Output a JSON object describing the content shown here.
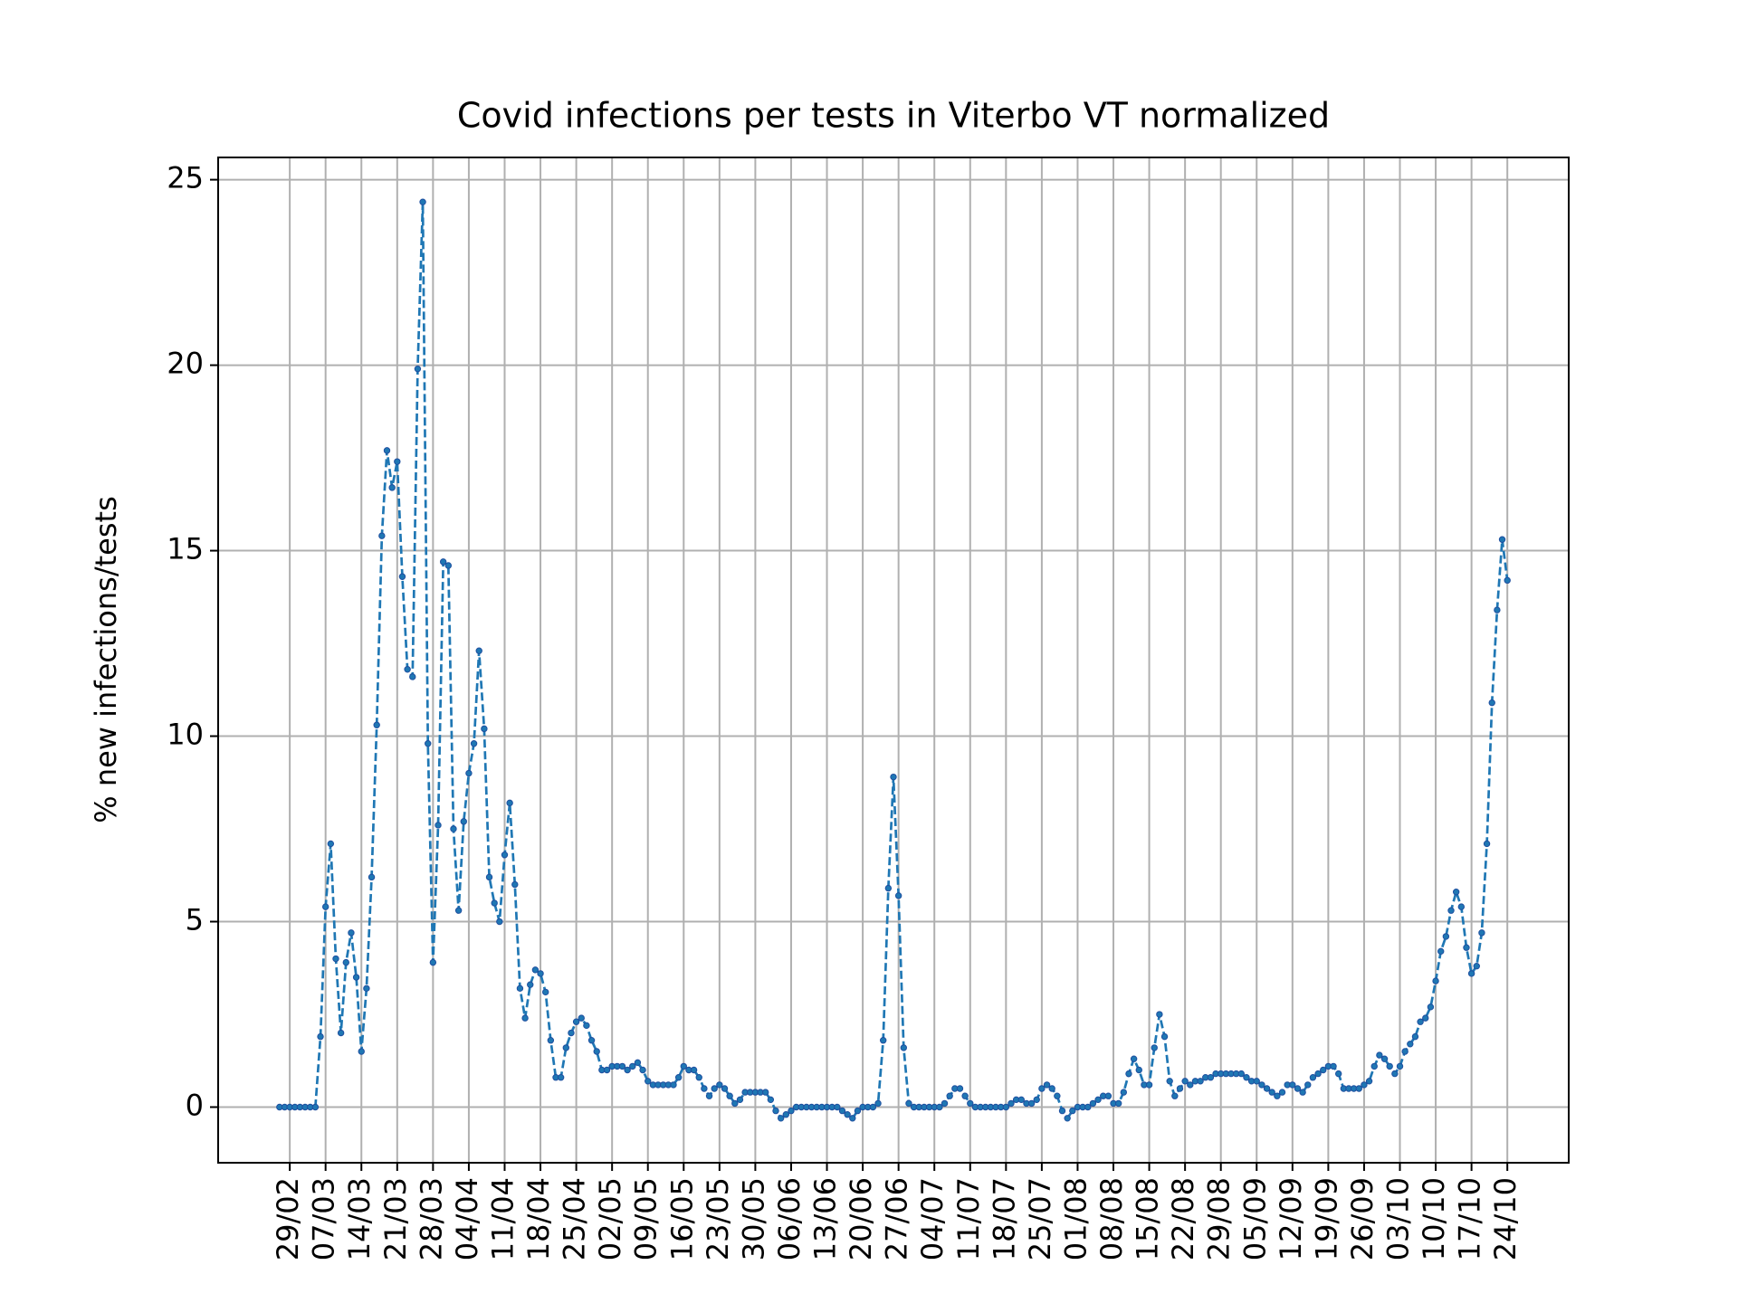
{
  "chart_data": {
    "type": "line",
    "title": "Covid infections per tests in Viterbo VT normalized",
    "y_label": "% new infections/tests",
    "categories": [
      null,
      null,
      "29/02",
      null,
      null,
      null,
      null,
      null,
      null,
      "07/03",
      null,
      null,
      null,
      null,
      null,
      null,
      "14/03",
      null,
      null,
      null,
      null,
      null,
      null,
      "21/03",
      null,
      null,
      null,
      null,
      null,
      null,
      "28/03",
      null,
      null,
      null,
      null,
      null,
      null,
      "04/04",
      null,
      null,
      null,
      null,
      null,
      null,
      "11/04",
      null,
      null,
      null,
      null,
      null,
      null,
      "18/04",
      null,
      null,
      null,
      null,
      null,
      null,
      "25/04",
      null,
      null,
      null,
      null,
      null,
      null,
      "02/05",
      null,
      null,
      null,
      null,
      null,
      null,
      "09/05",
      null,
      null,
      null,
      null,
      null,
      null,
      "16/05",
      null,
      null,
      null,
      null,
      null,
      null,
      "23/05",
      null,
      null,
      null,
      null,
      null,
      null,
      "30/05",
      null,
      null,
      null,
      null,
      null,
      null,
      "06/06",
      null,
      null,
      null,
      null,
      null,
      null,
      "13/06",
      null,
      null,
      null,
      null,
      null,
      null,
      "20/06",
      null,
      null,
      null,
      null,
      null,
      null,
      "27/06",
      null,
      null,
      null,
      null,
      null,
      null,
      "04/07",
      null,
      null,
      null,
      null,
      null,
      null,
      "11/07",
      null,
      null,
      null,
      null,
      null,
      null,
      "18/07",
      null,
      null,
      null,
      null,
      null,
      null,
      "25/07",
      null,
      null,
      null,
      null,
      null,
      null,
      "01/08",
      null,
      null,
      null,
      null,
      null,
      null,
      "08/08",
      null,
      null,
      null,
      null,
      null,
      null,
      "15/08",
      null,
      null,
      null,
      null,
      null,
      null,
      "22/08",
      null,
      null,
      null,
      null,
      null,
      null,
      "29/08",
      null,
      null,
      null,
      null,
      null,
      null,
      "05/09",
      null,
      null,
      null,
      null,
      null,
      null,
      "12/09",
      null,
      null,
      null,
      null,
      null,
      null,
      "19/09",
      null,
      null,
      null,
      null,
      null,
      null,
      "26/09",
      null,
      null,
      null,
      null,
      null,
      null,
      "03/10",
      null,
      null,
      null,
      null,
      null,
      null,
      "10/10",
      null,
      null,
      null,
      null,
      null,
      null,
      "17/10",
      null,
      null,
      null,
      null,
      null,
      null,
      "24/10"
    ],
    "series": [
      {
        "color": "#1f77b4",
        "values": [
          0,
          0,
          0,
          0,
          0,
          0,
          0,
          0,
          1.9,
          5.4,
          7.1,
          4.0,
          2.0,
          3.9,
          4.7,
          3.5,
          1.5,
          3.2,
          6.2,
          10.3,
          15.4,
          17.7,
          16.7,
          17.4,
          14.3,
          11.8,
          11.6,
          19.9,
          24.4,
          9.8,
          3.9,
          7.6,
          14.7,
          14.6,
          7.5,
          5.3,
          7.7,
          9.0,
          9.8,
          12.3,
          10.2,
          6.2,
          5.5,
          5.0,
          6.8,
          8.2,
          6.0,
          3.2,
          2.4,
          3.3,
          3.7,
          3.6,
          3.1,
          1.8,
          0.8,
          0.8,
          1.6,
          2.0,
          2.3,
          2.4,
          2.2,
          1.8,
          1.5,
          1.0,
          1.0,
          1.1,
          1.1,
          1.1,
          1.0,
          1.1,
          1.2,
          1.0,
          0.7,
          0.6,
          0.6,
          0.6,
          0.6,
          0.6,
          0.8,
          1.1,
          1.0,
          1.0,
          0.8,
          0.5,
          0.3,
          0.5,
          0.6,
          0.5,
          0.3,
          0.1,
          0.2,
          0.4,
          0.4,
          0.4,
          0.4,
          0.4,
          0.2,
          -0.1,
          -0.3,
          -0.2,
          -0.1,
          0,
          0,
          0,
          0,
          0,
          0,
          0,
          0,
          0,
          -0.1,
          -0.2,
          -0.3,
          -0.1,
          0,
          0,
          0,
          0.1,
          1.8,
          5.9,
          8.9,
          5.7,
          1.6,
          0.1,
          0,
          0,
          0,
          0,
          0,
          0,
          0.1,
          0.3,
          0.5,
          0.5,
          0.3,
          0.1,
          0,
          0,
          0,
          0,
          0,
          0,
          0,
          0.1,
          0.2,
          0.2,
          0.1,
          0.1,
          0.2,
          0.5,
          0.6,
          0.5,
          0.3,
          -0.1,
          -0.3,
          -0.1,
          0,
          0,
          0,
          0.1,
          0.2,
          0.3,
          0.3,
          0.1,
          0.1,
          0.4,
          0.9,
          1.3,
          1.0,
          0.6,
          0.6,
          1.6,
          2.5,
          1.9,
          0.7,
          0.3,
          0.5,
          0.7,
          0.6,
          0.7,
          0.7,
          0.8,
          0.8,
          0.9,
          0.9,
          0.9,
          0.9,
          0.9,
          0.9,
          0.8,
          0.7,
          0.7,
          0.6,
          0.5,
          0.4,
          0.3,
          0.4,
          0.6,
          0.6,
          0.5,
          0.4,
          0.6,
          0.8,
          0.9,
          1.0,
          1.1,
          1.1,
          0.9,
          0.5,
          0.5,
          0.5,
          0.5,
          0.6,
          0.7,
          1.1,
          1.4,
          1.3,
          1.1,
          0.9,
          1.1,
          1.5,
          1.7,
          1.9,
          2.3,
          2.4,
          2.7,
          3.4,
          4.2,
          4.6,
          5.3,
          5.8,
          5.4,
          4.3,
          3.6,
          3.8,
          4.7,
          7.1,
          10.9,
          13.4,
          15.3,
          14.2
        ]
      }
    ],
    "xlim": [
      -12,
      252
    ],
    "ylim": [
      -1.5,
      25.6
    ],
    "yticks": [
      0,
      5,
      10,
      15,
      20,
      25
    ],
    "grid": true,
    "line_style": "dashed",
    "marker": true
  }
}
